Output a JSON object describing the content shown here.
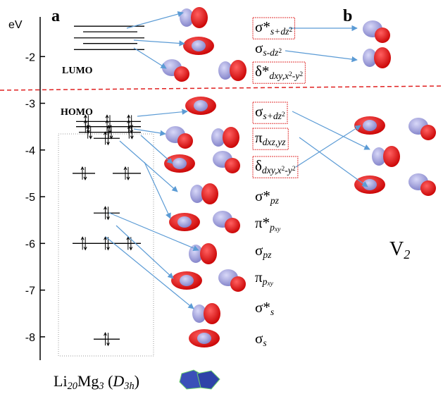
{
  "panel_labels": [
    "a",
    "b"
  ],
  "energy_axis": {
    "label": "eV",
    "ylim": [
      -1,
      -8.5
    ],
    "yticks": [
      -2,
      -3,
      -4,
      -5,
      -6,
      -7,
      -8
    ]
  },
  "lumo_label": "LUMO",
  "homo_label": "HOMO",
  "levels": [
    -1.35,
    -1.47,
    -1.6,
    -1.72,
    -1.85,
    -3.39,
    -3.5,
    -3.62,
    -3.75,
    -4.5,
    -4.5,
    -5.35,
    -6.0,
    -8.05
  ],
  "orbital_labels": [
    {
      "boxed": true,
      "parts": [
        {
          "text": "σ*"
        },
        {
          "sub": "s+dz"
        },
        {
          "subsup": "2"
        }
      ]
    },
    {
      "boxed": false,
      "parts": [
        {
          "text": "σ"
        },
        {
          "sub": "s-dz"
        },
        {
          "subsup": "2"
        }
      ]
    },
    {
      "boxed": true,
      "parts": [
        {
          "text": "δ*"
        },
        {
          "sub": "dxy,x"
        },
        {
          "subsup": "2"
        },
        {
          "sub": "-y"
        },
        {
          "subsup": "2"
        }
      ]
    },
    {
      "boxed": true,
      "parts": [
        {
          "text": "σ"
        },
        {
          "sub": "s+dz"
        },
        {
          "subsup": "2"
        }
      ]
    },
    {
      "boxed": true,
      "parts": [
        {
          "text": "π"
        },
        {
          "sub": "dxz,yz"
        }
      ]
    },
    {
      "boxed": true,
      "parts": [
        {
          "text": "δ"
        },
        {
          "sub": "dxy,x"
        },
        {
          "subsup": "2"
        },
        {
          "sub": "-y"
        },
        {
          "subsup": "2"
        }
      ]
    },
    {
      "boxed": false,
      "parts": [
        {
          "text": "σ*"
        },
        {
          "sub": "pz"
        }
      ]
    },
    {
      "boxed": false,
      "parts": [
        {
          "text": "π*"
        },
        {
          "sub": "p"
        },
        {
          "subsub": "xy"
        }
      ]
    },
    {
      "boxed": false,
      "parts": [
        {
          "text": "σ"
        },
        {
          "sub": "pz"
        }
      ]
    },
    {
      "boxed": false,
      "parts": [
        {
          "text": "π"
        },
        {
          "sub": "p"
        },
        {
          "subsub": "xy"
        }
      ]
    },
    {
      "boxed": false,
      "parts": [
        {
          "text": "σ*"
        },
        {
          "sub": "s"
        }
      ]
    },
    {
      "boxed": false,
      "parts": [
        {
          "text": "σ"
        },
        {
          "sub": "s"
        }
      ]
    }
  ],
  "dimer_label": {
    "parts": [
      {
        "text": "V"
      },
      {
        "sub": "2"
      }
    ]
  },
  "cluster_label": {
    "parts": [
      {
        "text": "Li"
      },
      {
        "sub": "20"
      },
      {
        "text": "Mg"
      },
      {
        "sub": "3"
      },
      {
        "text": " ("
      },
      {
        "ital": "D"
      },
      {
        "sub": "3h"
      },
      {
        "text": ")"
      }
    ]
  }
}
